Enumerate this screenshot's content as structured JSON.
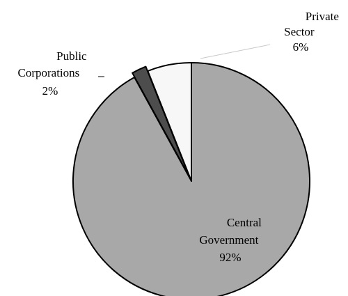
{
  "chart_data": {
    "type": "pie",
    "slices": [
      {
        "label_lines": [
          "Central",
          "Government"
        ],
        "value_label": "92%",
        "value": 92,
        "color": "#a8a8a8"
      },
      {
        "label_lines": [
          "Public",
          "Corporations"
        ],
        "value_label": "2%",
        "value": 2,
        "color": "#4d4d4d"
      },
      {
        "label_lines": [
          "Private",
          "Sector"
        ],
        "value_label": "6%",
        "value": 6,
        "color": "#f7f7f7"
      }
    ],
    "start_angle_deg": 0,
    "direction": "clockwise",
    "exploded_slices": [
      "Public Corporations",
      "Private Sector"
    ]
  }
}
